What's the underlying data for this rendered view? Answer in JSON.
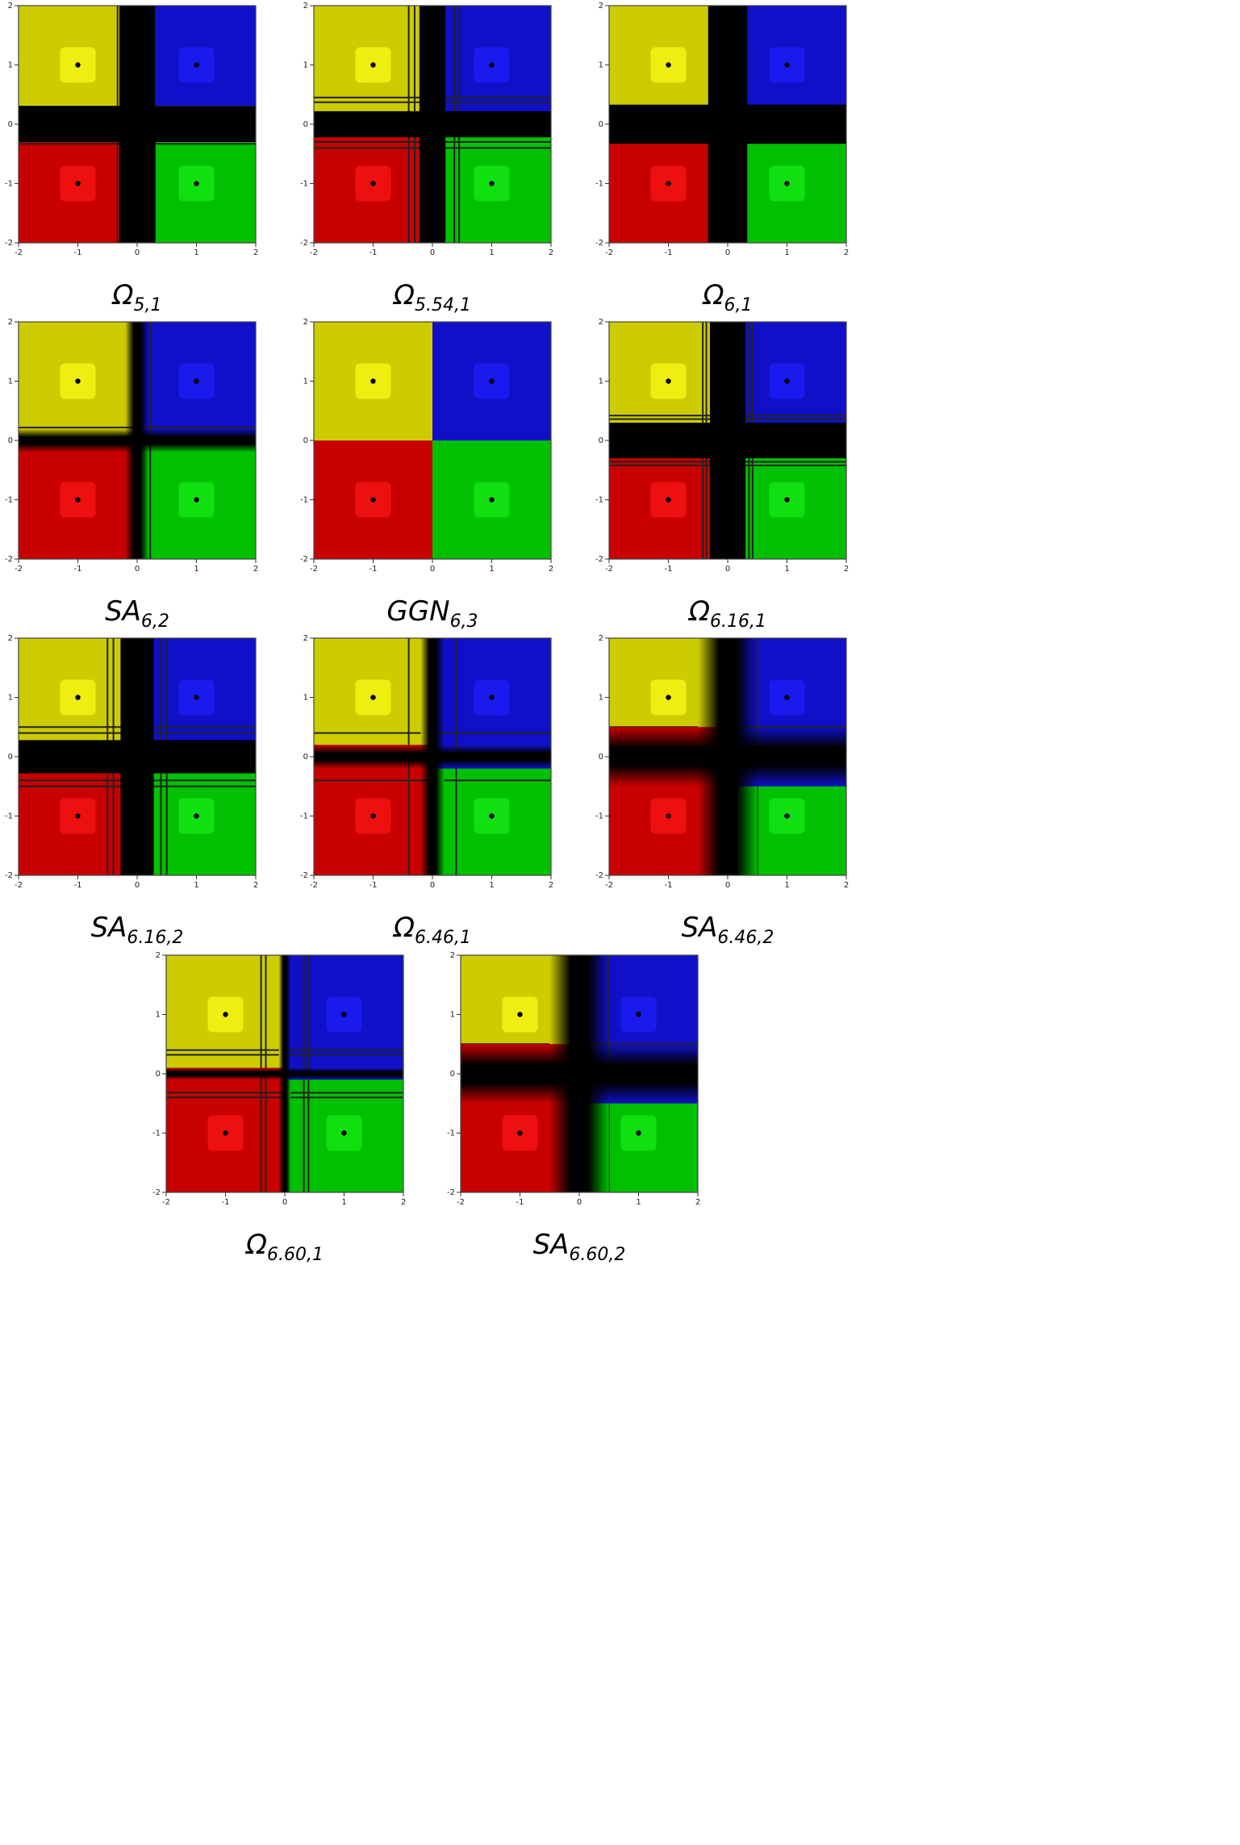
{
  "figure": {
    "panels": [
      {
        "caption_main": "Ω",
        "caption_sub": "5,1",
        "style": "plain",
        "band": 0.3,
        "streaks": [
          0.3,
          -0.33
        ]
      },
      {
        "caption_main": "Ω",
        "caption_sub": "5.54,1",
        "style": "plain",
        "band": 0.22,
        "streaks": [
          0.45,
          -0.4,
          0.37,
          -0.3
        ]
      },
      {
        "caption_main": "Ω",
        "caption_sub": "6,1",
        "style": "plain",
        "band": 0.33,
        "streaks": [
          0.3
        ]
      },
      {
        "caption_main": "SA",
        "caption_sub": "6,2",
        "style": "gradient",
        "band": 0.2,
        "streaks": [
          0.22
        ]
      },
      {
        "caption_main": "GGN",
        "caption_sub": "6,3",
        "style": "none",
        "band": 0.0,
        "streaks": []
      },
      {
        "caption_main": "Ω",
        "caption_sub": "6.16,1",
        "style": "plain",
        "band": 0.3,
        "streaks": [
          0.42,
          -0.42,
          0.36,
          -0.36
        ]
      },
      {
        "caption_main": "SA",
        "caption_sub": "6.16,2",
        "style": "plain",
        "band": 0.28,
        "streaks": [
          0.5,
          -0.5,
          0.4,
          -0.4
        ]
      },
      {
        "caption_main": "Ω",
        "caption_sub": "6.46,1",
        "style": "mixed",
        "band": 0.2,
        "streaks": [
          0.4,
          -0.4
        ]
      },
      {
        "caption_main": "SA",
        "caption_sub": "6.46,2",
        "style": "mixed",
        "band": 0.5,
        "streaks": [
          0.5
        ]
      },
      {
        "caption_main": "Ω",
        "caption_sub": "6.60,1",
        "style": "mixed",
        "band": 0.1,
        "streaks": [
          0.4,
          -0.4,
          0.32,
          -0.32
        ]
      },
      {
        "caption_main": "SA",
        "caption_sub": "6.60,2",
        "style": "mixed",
        "band": 0.5,
        "streaks": [
          0.5
        ]
      }
    ]
  },
  "colors": {
    "q1": "#1010c8",
    "q2": "#cccc00",
    "q3": "#c80000",
    "q4": "#00c000",
    "q1_light": "#1a1aee",
    "q2_light": "#eeee10",
    "q3_light": "#ee1010",
    "q4_light": "#10e010",
    "band": "#000000"
  },
  "chart_data": {
    "type": "heatmap",
    "description_values": "basins of attraction over [-2,2]x[-2,2]",
    "xlim": [
      -2,
      2
    ],
    "ylim": [
      -2,
      2
    ],
    "xticks": [
      "-2",
      "-1",
      "0",
      "1",
      "2"
    ],
    "yticks": [
      "-2",
      "-1",
      "0",
      "1",
      "2"
    ],
    "roots": [
      [
        1,
        1
      ],
      [
        -1,
        1
      ],
      [
        -1,
        -1
      ],
      [
        1,
        -1
      ]
    ]
  }
}
